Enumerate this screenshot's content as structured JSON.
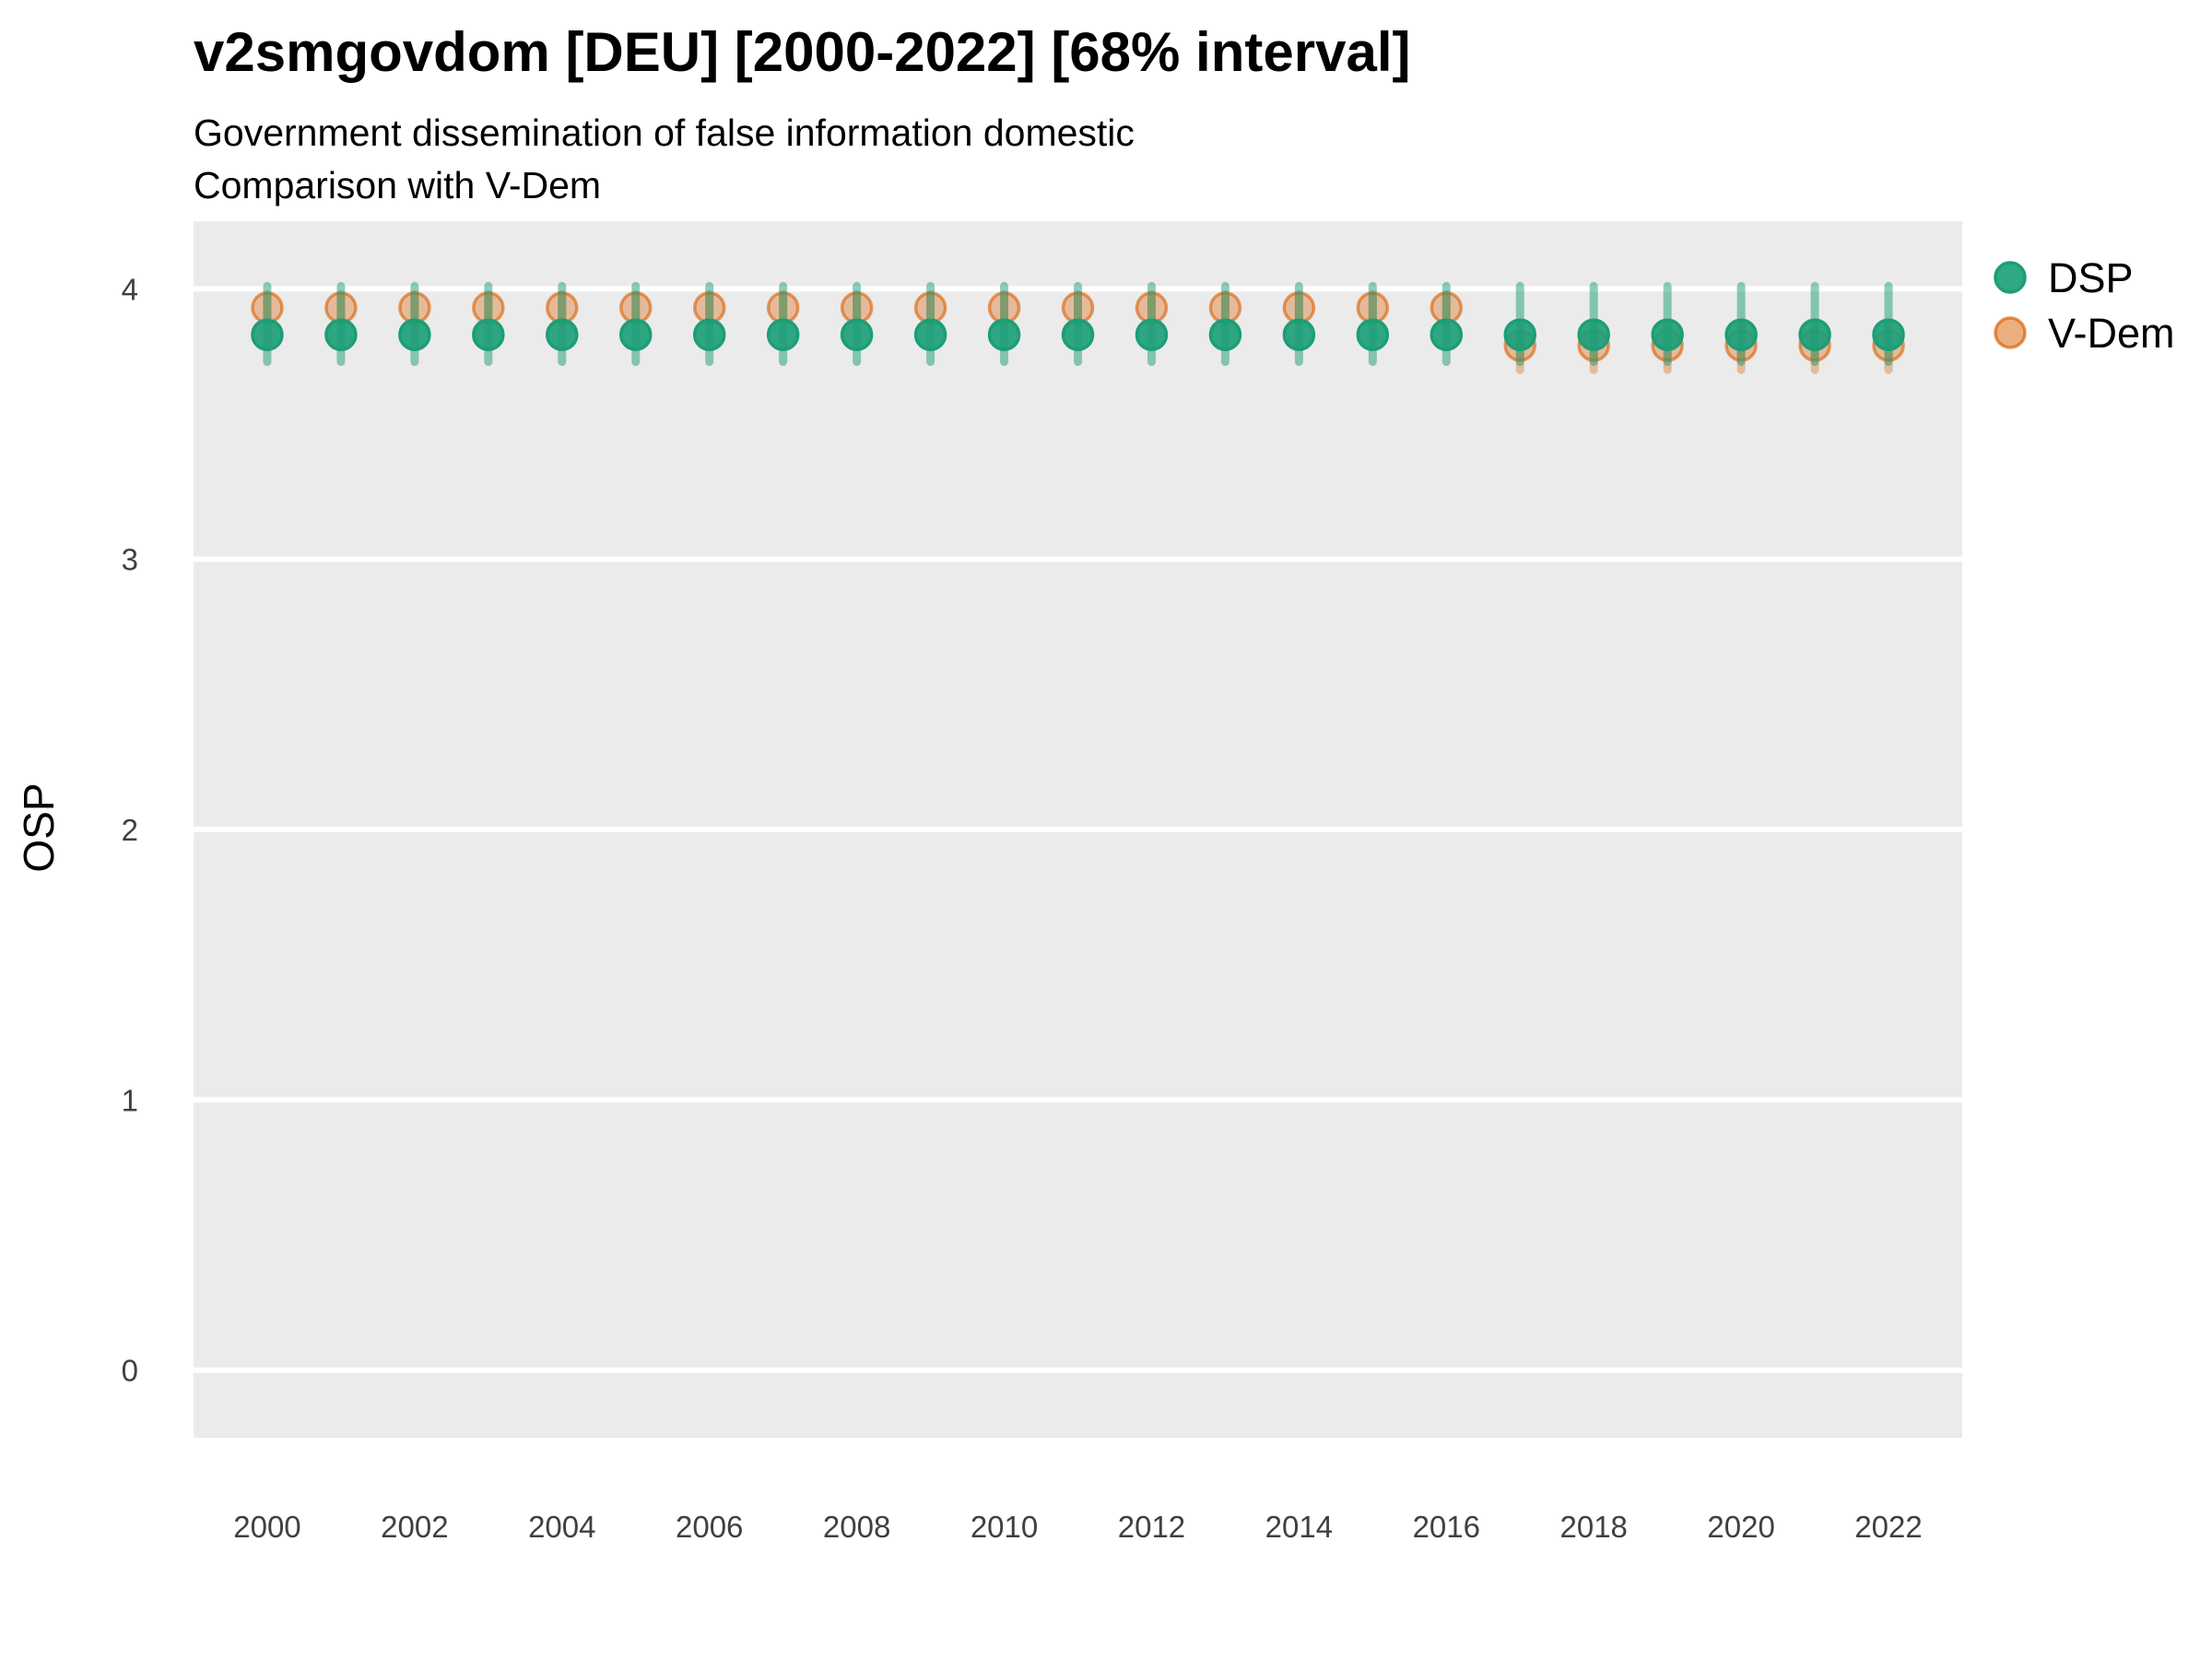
{
  "header": {
    "title": "v2smgovdom [DEU] [2000-2022] [68% interval]",
    "subtitle_line1": "Government dissemination of false information domestic",
    "subtitle_line2": "Comparison with V-Dem"
  },
  "legend": {
    "position": "right-top",
    "items": [
      {
        "label": "DSP",
        "dot_fill": "#1b9e77E6",
        "dot_stroke": "#1b9e77"
      },
      {
        "label": "V-Dem",
        "dot_fill": "#d95f0280",
        "dot_stroke": "#d95f02AA"
      }
    ]
  },
  "chart_data": {
    "type": "scatter",
    "title": "v2smgovdom [DEU] [2000-2022] [68% interval]",
    "subtitle": "Government dissemination of false information domestic — Comparison with V-Dem",
    "interval": "68%",
    "xlabel": "",
    "ylabel": "OSP",
    "x": [
      2000,
      2001,
      2002,
      2003,
      2004,
      2005,
      2006,
      2007,
      2008,
      2009,
      2010,
      2011,
      2012,
      2013,
      2014,
      2015,
      2016,
      2017,
      2018,
      2019,
      2020,
      2021,
      2022
    ],
    "xticks": [
      2000,
      2002,
      2004,
      2006,
      2008,
      2010,
      2012,
      2014,
      2016,
      2018,
      2020,
      2022
    ],
    "yticks": [
      0,
      1,
      2,
      3,
      4
    ],
    "xlim": [
      1999,
      2023
    ],
    "ylim": [
      -0.25,
      4.25
    ],
    "grid": "horizontal-major-only",
    "panel_bg": "#ebebeb",
    "grid_color": "#ffffff",
    "series": [
      {
        "name": "DSP",
        "point_fill": "#1b9e77E6",
        "point_stroke": "#1b9e77",
        "bar_color": "#1b9e7780",
        "values": [
          3.83,
          3.83,
          3.83,
          3.83,
          3.83,
          3.83,
          3.83,
          3.83,
          3.83,
          3.83,
          3.83,
          3.83,
          3.83,
          3.83,
          3.83,
          3.83,
          3.83,
          3.83,
          3.83,
          3.83,
          3.83,
          3.83,
          3.83
        ],
        "lower": [
          3.73,
          3.73,
          3.73,
          3.73,
          3.73,
          3.73,
          3.73,
          3.73,
          3.73,
          3.73,
          3.73,
          3.73,
          3.73,
          3.73,
          3.73,
          3.73,
          3.73,
          3.73,
          3.73,
          3.73,
          3.73,
          3.73,
          3.73
        ],
        "upper": [
          4.01,
          4.01,
          4.01,
          4.01,
          4.01,
          4.01,
          4.01,
          4.01,
          4.01,
          4.01,
          4.01,
          4.01,
          4.01,
          4.01,
          4.01,
          4.01,
          4.01,
          4.01,
          4.01,
          4.01,
          4.01,
          4.01,
          4.01
        ]
      },
      {
        "name": "V-Dem",
        "point_fill": "#d95f0259",
        "point_stroke": "#d95f0299",
        "bar_color": "#d95f0259",
        "values": [
          3.93,
          3.93,
          3.93,
          3.93,
          3.93,
          3.93,
          3.93,
          3.93,
          3.93,
          3.93,
          3.93,
          3.93,
          3.93,
          3.93,
          3.93,
          3.93,
          3.93,
          3.79,
          3.79,
          3.79,
          3.79,
          3.79,
          3.79
        ],
        "lower": [
          3.88,
          3.88,
          3.88,
          3.88,
          3.88,
          3.88,
          3.88,
          3.88,
          3.88,
          3.88,
          3.88,
          3.88,
          3.88,
          3.88,
          3.88,
          3.88,
          3.88,
          3.7,
          3.7,
          3.7,
          3.7,
          3.7,
          3.7
        ],
        "upper": [
          3.98,
          3.98,
          3.98,
          3.98,
          3.98,
          3.98,
          3.98,
          3.98,
          3.98,
          3.98,
          3.98,
          3.98,
          3.98,
          3.98,
          3.98,
          3.98,
          3.98,
          3.87,
          3.87,
          3.87,
          3.87,
          3.87,
          3.87
        ]
      }
    ]
  }
}
